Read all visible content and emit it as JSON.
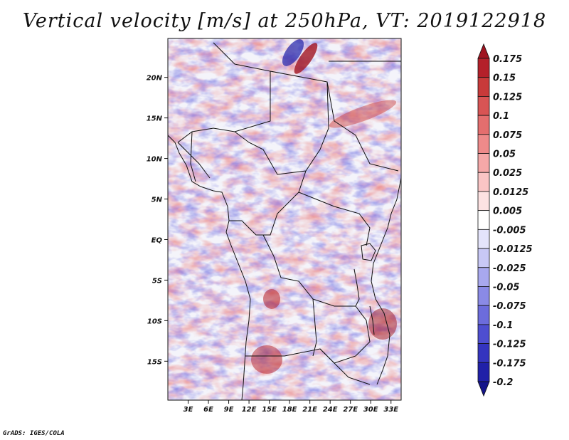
{
  "chart_data": {
    "type": "heatmap",
    "title": "Vertical velocity [m/s] at 250hPa, VT: 2019122918",
    "x_ticks": [
      "3E",
      "6E",
      "9E",
      "12E",
      "15E",
      "18E",
      "21E",
      "24E",
      "27E",
      "30E",
      "33E"
    ],
    "x_tick_values": [
      3,
      6,
      9,
      12,
      15,
      18,
      21,
      24,
      27,
      30,
      33
    ],
    "y_ticks": [
      "20N",
      "15N",
      "10N",
      "5N",
      "EQ",
      "5S",
      "10S",
      "15S"
    ],
    "y_tick_values": [
      20,
      15,
      10,
      5,
      0,
      -5,
      -10,
      -15
    ],
    "lon_range": [
      0,
      34.5
    ],
    "lat_range": [
      -19.8,
      24.8
    ],
    "colorbar": {
      "levels": [
        "0.175",
        "0.15",
        "0.125",
        "0.1",
        "0.075",
        "0.05",
        "0.025",
        "0.0125",
        "0.005",
        "-0.005",
        "-0.0125",
        "-0.025",
        "-0.05",
        "-0.075",
        "-0.1",
        "-0.125",
        "-0.175",
        "-0.2"
      ],
      "colors": [
        "#a01420",
        "#b4202a",
        "#c83a3a",
        "#d85454",
        "#e46e6e",
        "#ee8a8a",
        "#f5a8a8",
        "#fac5c5",
        "#fde2e2",
        "#ffffff",
        "#e4e4fb",
        "#c8c8f5",
        "#a8a8ee",
        "#8a8ae6",
        "#6c6cdc",
        "#4e4ed0",
        "#3434bf",
        "#2020a8",
        "#14148a"
      ]
    },
    "credit": "GrADS: IGES/COLA"
  }
}
